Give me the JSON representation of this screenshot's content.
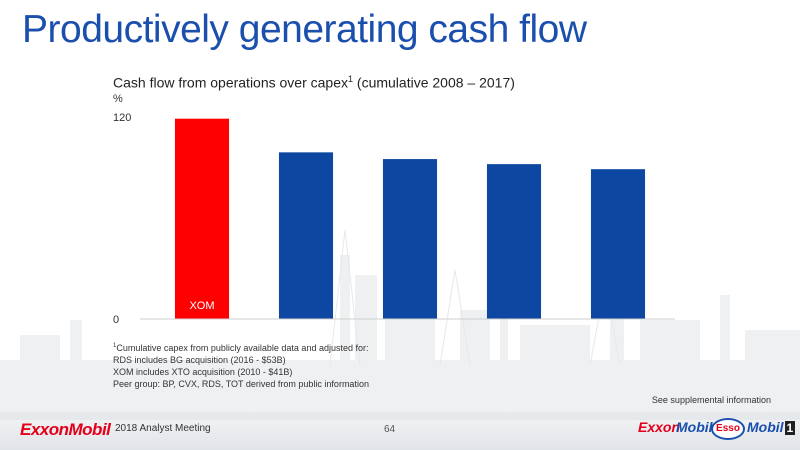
{
  "slide": {
    "title": "Productively generating cash flow",
    "chart_title": "Cash flow from operations over capex",
    "chart_title_sup": "1",
    "chart_title_suffix": " (cumulative 2008 – 2017)",
    "unit": "%"
  },
  "footnote": {
    "sup": "1",
    "line1": "Cumulative capex from publicly available data and adjusted for:",
    "line2": "RDS includes BG acquisition (2016 - $53B)",
    "line3": "XOM includes XTO acquisition (2010 - $41B)",
    "line4": "Peer group: BP, CVX, RDS, TOT derived from public information"
  },
  "supplemental": "See supplemental information",
  "footer": {
    "logo": "ExxonMobil",
    "meeting": "2018 Analyst Meeting",
    "page": "64",
    "brands": {
      "exxon": "Exxon",
      "mobil_pre": "Mobil",
      "esso": "Esso",
      "mobil1": "Mobil",
      "mobil1_num": "1"
    }
  },
  "colors": {
    "title": "#1a4fae",
    "highlight_bar": "#ff0000",
    "peer_bar": "#0d47a1",
    "brand_red": "#e4001b"
  },
  "chart_data": {
    "type": "bar",
    "categories": [
      "XOM",
      "",
      "",
      "",
      ""
    ],
    "values": [
      119,
      99,
      95,
      92,
      89
    ],
    "bar_colors": [
      "#ff0000",
      "#0d47a1",
      "#0d47a1",
      "#0d47a1",
      "#0d47a1"
    ],
    "bar_label": "XOM",
    "ylim": [
      0,
      120
    ],
    "yticks": [
      0,
      120
    ],
    "ylabel": "%",
    "grid": false
  }
}
